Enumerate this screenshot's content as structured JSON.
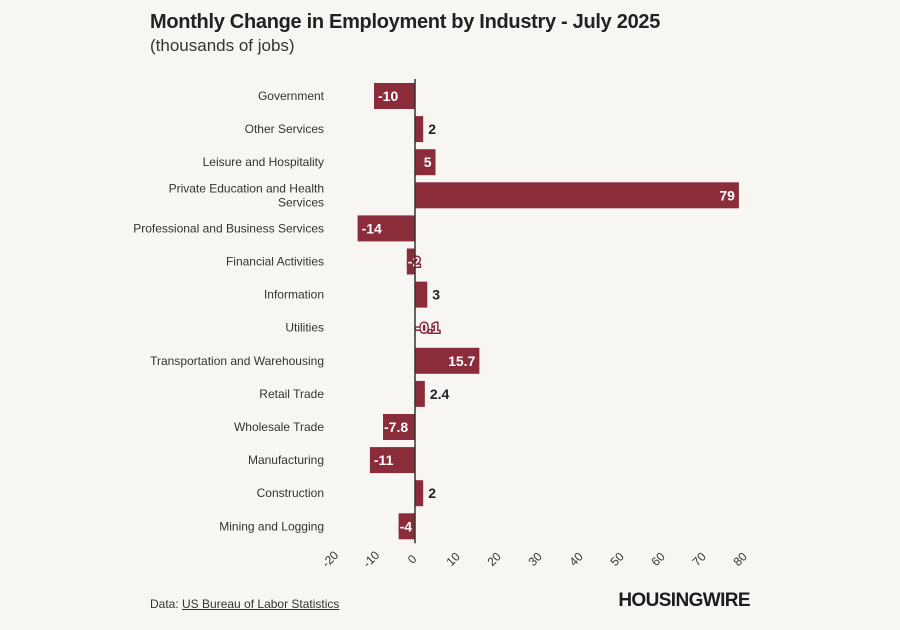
{
  "chart_data": {
    "type": "bar",
    "orientation": "horizontal",
    "title": "Monthly Change in Employment by Industry - July 2025",
    "subtitle": "(thousands of jobs)",
    "categories": [
      "Government",
      "Other Services",
      "Leisure and Hospitality",
      "Private Education and Health Services",
      "Professional and Business Services",
      "Financial Activities",
      "Information",
      "Utilities",
      "Transportation and Warehousing",
      "Retail Trade",
      "Wholesale Trade",
      "Manufacturing",
      "Construction",
      "Mining and Logging"
    ],
    "category_lines": [
      [
        "Government"
      ],
      [
        "Other Services"
      ],
      [
        "Leisure and Hospitality"
      ],
      [
        "Private Education and Health",
        "Services"
      ],
      [
        "Professional and Business Services"
      ],
      [
        "Financial Activities"
      ],
      [
        "Information"
      ],
      [
        "Utilities"
      ],
      [
        "Transportation and Warehousing"
      ],
      [
        "Retail Trade"
      ],
      [
        "Wholesale Trade"
      ],
      [
        "Manufacturing"
      ],
      [
        "Construction"
      ],
      [
        "Mining and Logging"
      ]
    ],
    "values": [
      -10,
      2,
      5,
      79,
      -14,
      -2,
      3,
      -0.1,
      15.7,
      2.4,
      -7.8,
      -11,
      2,
      -4
    ],
    "data_labels": [
      "-10",
      "2",
      "5",
      "79",
      "-14",
      "-2",
      "3",
      "-0.1",
      "15.7",
      "2.4",
      "-7.8",
      "-11",
      "2",
      "-4"
    ],
    "xlim": [
      -20,
      80
    ],
    "xticks": [
      -20,
      -10,
      0,
      10,
      20,
      30,
      40,
      50,
      60,
      70,
      80
    ],
    "xtick_labels": [
      "-20",
      "-10",
      "0",
      "10",
      "20",
      "30",
      "40",
      "50",
      "60",
      "70",
      "80"
    ],
    "xlabel": "",
    "ylabel": "",
    "grid": false,
    "legend": "none"
  },
  "colors": {
    "bar": "#8b2c3a",
    "zero_line": "#333333",
    "background": "#f8f6f3",
    "label_inside": "#ffffff",
    "label_outside": "#222222"
  },
  "footer": {
    "prefix": "Data: ",
    "source": "US Bureau of Labor Statistics"
  },
  "brand": "HOUSINGWIRE"
}
